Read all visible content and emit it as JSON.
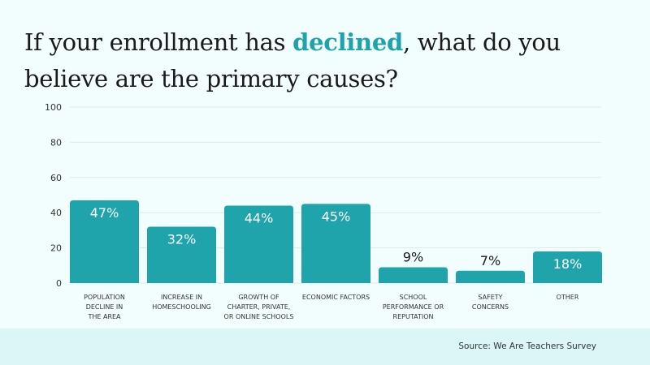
{
  "title": {
    "before": "If your enrollment has ",
    "highlight": "declined",
    "after": ", what do you believe are the primary causes?"
  },
  "source": "Source: We Are Teachers Survey",
  "colors": {
    "bar": "#20a4ab",
    "highlight": "#1fa3ab",
    "grid": "#dde8ea"
  },
  "chart_data": {
    "type": "bar",
    "categories": [
      [
        "POPULATION",
        "DECLINE IN",
        "THE AREA"
      ],
      [
        "INCREASE IN",
        "HOMESCHOOLING"
      ],
      [
        "GROWTH OF",
        "CHARTER, PRIVATE,",
        "OR ONLINE SCHOOLS"
      ],
      [
        "ECONOMIC FACTORS"
      ],
      [
        "SCHOOL",
        "PERFORMANCE OR",
        "REPUTATION"
      ],
      [
        "SAFETY",
        "CONCERNS"
      ],
      [
        "OTHER"
      ]
    ],
    "values": [
      47,
      32,
      44,
      45,
      9,
      7,
      18
    ],
    "data_labels": [
      "47%",
      "32%",
      "44%",
      "45%",
      "9%",
      "7%",
      "18%"
    ],
    "ylim": [
      0,
      100
    ],
    "yticks": [
      0,
      20,
      40,
      60,
      80,
      100
    ],
    "grid": true,
    "xlabel": "",
    "ylabel": ""
  }
}
